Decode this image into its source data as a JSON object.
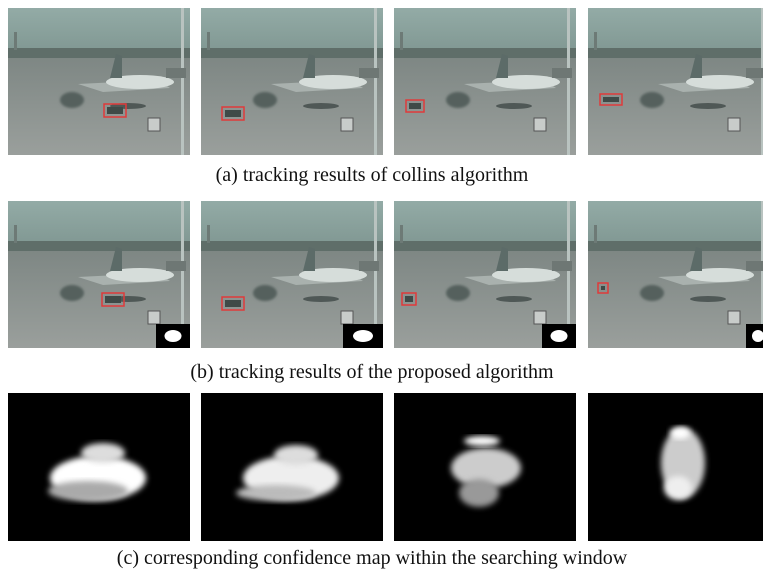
{
  "captions": [
    "(a) tracking results of collins algorithm",
    "(b) tracking results of the proposed algorithm",
    "(c) corresponding confidence map within the searching window"
  ]
}
